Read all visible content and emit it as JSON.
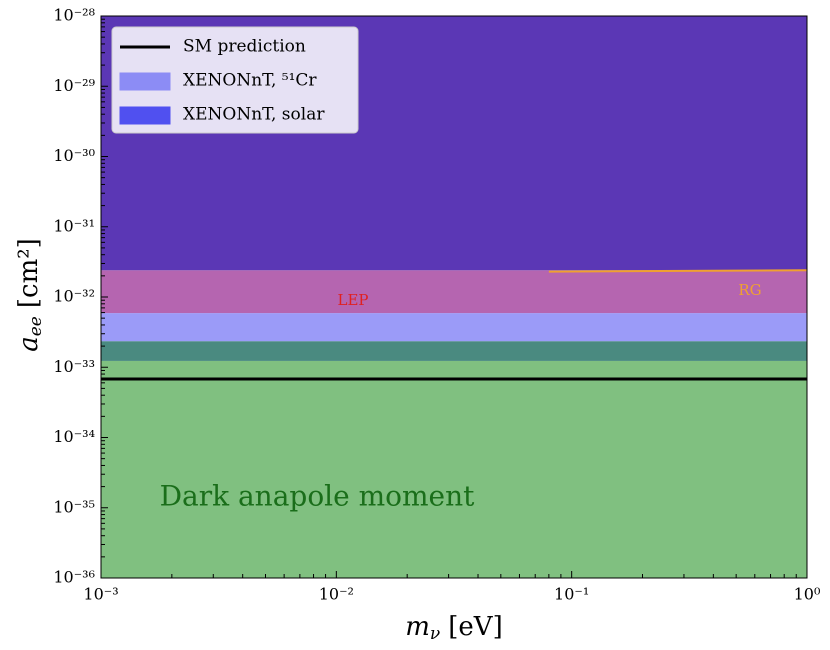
{
  "chart_data": {
    "type": "band-limits",
    "xlabel": {
      "symbol": "m",
      "subscript": "ν",
      "unit": "[eV]"
    },
    "ylabel": {
      "symbol": "a",
      "subscript": "ee",
      "unit": "[cm²]"
    },
    "log_x": true,
    "log_y": true,
    "xlim": [
      0.001,
      1
    ],
    "ylim": [
      1e-36,
      1e-28
    ],
    "xticks": [
      {
        "value": 0.001,
        "label": "10⁻³"
      },
      {
        "value": 0.01,
        "label": "10⁻²"
      },
      {
        "value": 0.1,
        "label": "10⁻¹"
      },
      {
        "value": 1,
        "label": "10⁰"
      }
    ],
    "yticks": [
      {
        "value": 1e-36,
        "label": "10⁻³⁶"
      },
      {
        "value": 1e-35,
        "label": "10⁻³⁵"
      },
      {
        "value": 1e-34,
        "label": "10⁻³⁴"
      },
      {
        "value": 1e-33,
        "label": "10⁻³³"
      },
      {
        "value": 1e-32,
        "label": "10⁻³²"
      },
      {
        "value": 1e-31,
        "label": "10⁻³¹"
      },
      {
        "value": 1e-30,
        "label": "10⁻³⁰"
      },
      {
        "value": 1e-29,
        "label": "10⁻²⁹"
      },
      {
        "value": 1e-28,
        "label": "10⁻²⁸"
      }
    ],
    "regions": [
      {
        "lower": 1e-36,
        "upper": 1.23e-33,
        "color": "#80c080"
      },
      {
        "lower": 1.23e-33,
        "upper": 2.35e-33,
        "color": "#4a8a80"
      },
      {
        "lower": 2.35e-33,
        "upper": 5.9e-33,
        "color": "#9b9bf8"
      },
      {
        "lower": 5.9e-33,
        "upper": 2.4e-32,
        "color": "#b565b0"
      },
      {
        "lower": 2.4e-32,
        "upper": 1e-28,
        "color": "#5b37b5"
      }
    ],
    "series": [
      {
        "name": "SM prediction",
        "color": "#000000",
        "x": [
          0.001,
          1
        ],
        "values": [
          6.8e-34,
          6.8e-34
        ]
      }
    ],
    "curves": [
      {
        "color": "#f0a030",
        "x": [
          0.08,
          1
        ],
        "values": [
          2.3e-32,
          2.4e-32
        ]
      }
    ],
    "patches": [
      {
        "name": "XENONnT, ⁵¹Cr",
        "color": "#8c8cf5"
      },
      {
        "name": "XENONnT, solar",
        "color": "#5050f0"
      }
    ],
    "annotations": {
      "lep": "LEP",
      "rg": "RG",
      "region": "Dark anapole moment"
    }
  }
}
